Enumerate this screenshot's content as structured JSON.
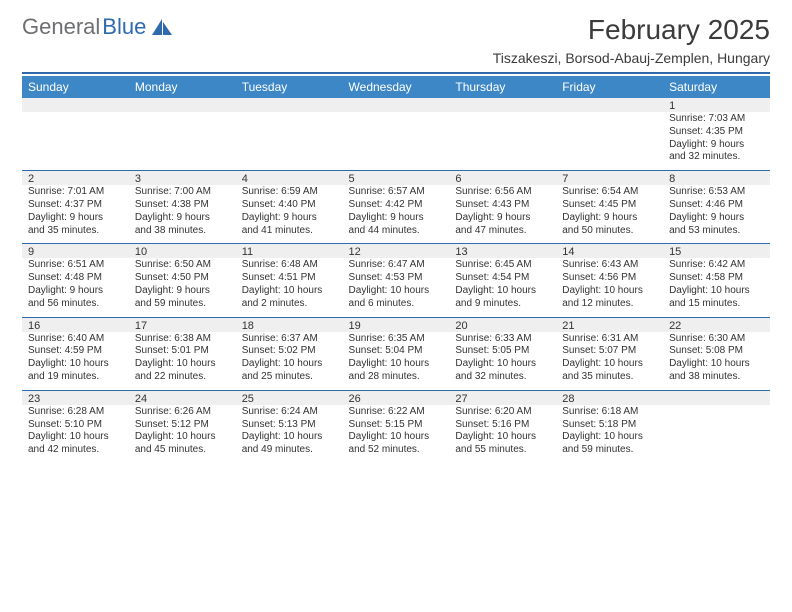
{
  "brand": {
    "general": "General",
    "blue": "Blue"
  },
  "title": "February 2025",
  "location": "Tiszakeszi, Borsod-Abauj-Zemplen, Hungary",
  "colors": {
    "accent": "#2f6aad",
    "header_row_bg": "#3d87c7",
    "band_bg": "#efefef",
    "text": "#333333",
    "logo_gray": "#6d6f72"
  },
  "day_names": [
    "Sunday",
    "Monday",
    "Tuesday",
    "Wednesday",
    "Thursday",
    "Friday",
    "Saturday"
  ],
  "weeks": [
    [
      null,
      null,
      null,
      null,
      null,
      null,
      {
        "n": "1",
        "sr": "Sunrise: 7:03 AM",
        "ss": "Sunset: 4:35 PM",
        "d1": "Daylight: 9 hours",
        "d2": "and 32 minutes."
      }
    ],
    [
      {
        "n": "2",
        "sr": "Sunrise: 7:01 AM",
        "ss": "Sunset: 4:37 PM",
        "d1": "Daylight: 9 hours",
        "d2": "and 35 minutes."
      },
      {
        "n": "3",
        "sr": "Sunrise: 7:00 AM",
        "ss": "Sunset: 4:38 PM",
        "d1": "Daylight: 9 hours",
        "d2": "and 38 minutes."
      },
      {
        "n": "4",
        "sr": "Sunrise: 6:59 AM",
        "ss": "Sunset: 4:40 PM",
        "d1": "Daylight: 9 hours",
        "d2": "and 41 minutes."
      },
      {
        "n": "5",
        "sr": "Sunrise: 6:57 AM",
        "ss": "Sunset: 4:42 PM",
        "d1": "Daylight: 9 hours",
        "d2": "and 44 minutes."
      },
      {
        "n": "6",
        "sr": "Sunrise: 6:56 AM",
        "ss": "Sunset: 4:43 PM",
        "d1": "Daylight: 9 hours",
        "d2": "and 47 minutes."
      },
      {
        "n": "7",
        "sr": "Sunrise: 6:54 AM",
        "ss": "Sunset: 4:45 PM",
        "d1": "Daylight: 9 hours",
        "d2": "and 50 minutes."
      },
      {
        "n": "8",
        "sr": "Sunrise: 6:53 AM",
        "ss": "Sunset: 4:46 PM",
        "d1": "Daylight: 9 hours",
        "d2": "and 53 minutes."
      }
    ],
    [
      {
        "n": "9",
        "sr": "Sunrise: 6:51 AM",
        "ss": "Sunset: 4:48 PM",
        "d1": "Daylight: 9 hours",
        "d2": "and 56 minutes."
      },
      {
        "n": "10",
        "sr": "Sunrise: 6:50 AM",
        "ss": "Sunset: 4:50 PM",
        "d1": "Daylight: 9 hours",
        "d2": "and 59 minutes."
      },
      {
        "n": "11",
        "sr": "Sunrise: 6:48 AM",
        "ss": "Sunset: 4:51 PM",
        "d1": "Daylight: 10 hours",
        "d2": "and 2 minutes."
      },
      {
        "n": "12",
        "sr": "Sunrise: 6:47 AM",
        "ss": "Sunset: 4:53 PM",
        "d1": "Daylight: 10 hours",
        "d2": "and 6 minutes."
      },
      {
        "n": "13",
        "sr": "Sunrise: 6:45 AM",
        "ss": "Sunset: 4:54 PM",
        "d1": "Daylight: 10 hours",
        "d2": "and 9 minutes."
      },
      {
        "n": "14",
        "sr": "Sunrise: 6:43 AM",
        "ss": "Sunset: 4:56 PM",
        "d1": "Daylight: 10 hours",
        "d2": "and 12 minutes."
      },
      {
        "n": "15",
        "sr": "Sunrise: 6:42 AM",
        "ss": "Sunset: 4:58 PM",
        "d1": "Daylight: 10 hours",
        "d2": "and 15 minutes."
      }
    ],
    [
      {
        "n": "16",
        "sr": "Sunrise: 6:40 AM",
        "ss": "Sunset: 4:59 PM",
        "d1": "Daylight: 10 hours",
        "d2": "and 19 minutes."
      },
      {
        "n": "17",
        "sr": "Sunrise: 6:38 AM",
        "ss": "Sunset: 5:01 PM",
        "d1": "Daylight: 10 hours",
        "d2": "and 22 minutes."
      },
      {
        "n": "18",
        "sr": "Sunrise: 6:37 AM",
        "ss": "Sunset: 5:02 PM",
        "d1": "Daylight: 10 hours",
        "d2": "and 25 minutes."
      },
      {
        "n": "19",
        "sr": "Sunrise: 6:35 AM",
        "ss": "Sunset: 5:04 PM",
        "d1": "Daylight: 10 hours",
        "d2": "and 28 minutes."
      },
      {
        "n": "20",
        "sr": "Sunrise: 6:33 AM",
        "ss": "Sunset: 5:05 PM",
        "d1": "Daylight: 10 hours",
        "d2": "and 32 minutes."
      },
      {
        "n": "21",
        "sr": "Sunrise: 6:31 AM",
        "ss": "Sunset: 5:07 PM",
        "d1": "Daylight: 10 hours",
        "d2": "and 35 minutes."
      },
      {
        "n": "22",
        "sr": "Sunrise: 6:30 AM",
        "ss": "Sunset: 5:08 PM",
        "d1": "Daylight: 10 hours",
        "d2": "and 38 minutes."
      }
    ],
    [
      {
        "n": "23",
        "sr": "Sunrise: 6:28 AM",
        "ss": "Sunset: 5:10 PM",
        "d1": "Daylight: 10 hours",
        "d2": "and 42 minutes."
      },
      {
        "n": "24",
        "sr": "Sunrise: 6:26 AM",
        "ss": "Sunset: 5:12 PM",
        "d1": "Daylight: 10 hours",
        "d2": "and 45 minutes."
      },
      {
        "n": "25",
        "sr": "Sunrise: 6:24 AM",
        "ss": "Sunset: 5:13 PM",
        "d1": "Daylight: 10 hours",
        "d2": "and 49 minutes."
      },
      {
        "n": "26",
        "sr": "Sunrise: 6:22 AM",
        "ss": "Sunset: 5:15 PM",
        "d1": "Daylight: 10 hours",
        "d2": "and 52 minutes."
      },
      {
        "n": "27",
        "sr": "Sunrise: 6:20 AM",
        "ss": "Sunset: 5:16 PM",
        "d1": "Daylight: 10 hours",
        "d2": "and 55 minutes."
      },
      {
        "n": "28",
        "sr": "Sunrise: 6:18 AM",
        "ss": "Sunset: 5:18 PM",
        "d1": "Daylight: 10 hours",
        "d2": "and 59 minutes."
      },
      null
    ]
  ]
}
